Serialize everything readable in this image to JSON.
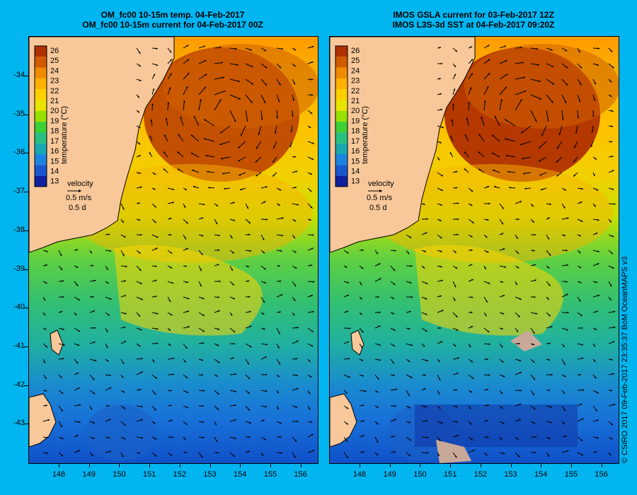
{
  "left_panel": {
    "title_line1": "OM_fc00 10-15m temp. 04-Feb-2017",
    "title_line2": "OM_fc00 10-15m current for 04-Feb-2017 00Z",
    "colorbar_label": "temperature (°C)",
    "velocity_label": "velocity",
    "velocity_scale": "0.5 m/s",
    "velocity_time": "0.5 d"
  },
  "right_panel": {
    "title_line1": "IMOS GSLA current for 03-Feb-2017 12Z",
    "title_line2": "IMOS L3S-3d SST at 04-Feb-2017 09:20Z",
    "colorbar_label": "temperature (°C)",
    "velocity_label": "velocity",
    "velocity_scale": "0.5 m/s",
    "velocity_time": "0.5 d"
  },
  "colorbar": {
    "ticks": [
      "26",
      "25",
      "24",
      "23",
      "22",
      "21",
      "20",
      "19",
      "18",
      "17",
      "16",
      "15",
      "14",
      "13"
    ],
    "colors": [
      "#b03000",
      "#d25a00",
      "#f08a00",
      "#ffb000",
      "#ffd000",
      "#e8e400",
      "#98e000",
      "#3cd034",
      "#28c080",
      "#1aa8b0",
      "#1c84e0",
      "#1858d0",
      "#1020a0"
    ]
  },
  "axes": {
    "y_ticks": [
      "-34",
      "-35",
      "-36",
      "-37",
      "-38",
      "-39",
      "-40",
      "-41",
      "-42",
      "-43"
    ],
    "x_ticks": [
      "148",
      "149",
      "150",
      "151",
      "152",
      "153",
      "154",
      "155",
      "156"
    ]
  },
  "credit": "© CSIRO 2017  09-Feb-2017 23:35:37 BoM OceanMAPS v3"
}
